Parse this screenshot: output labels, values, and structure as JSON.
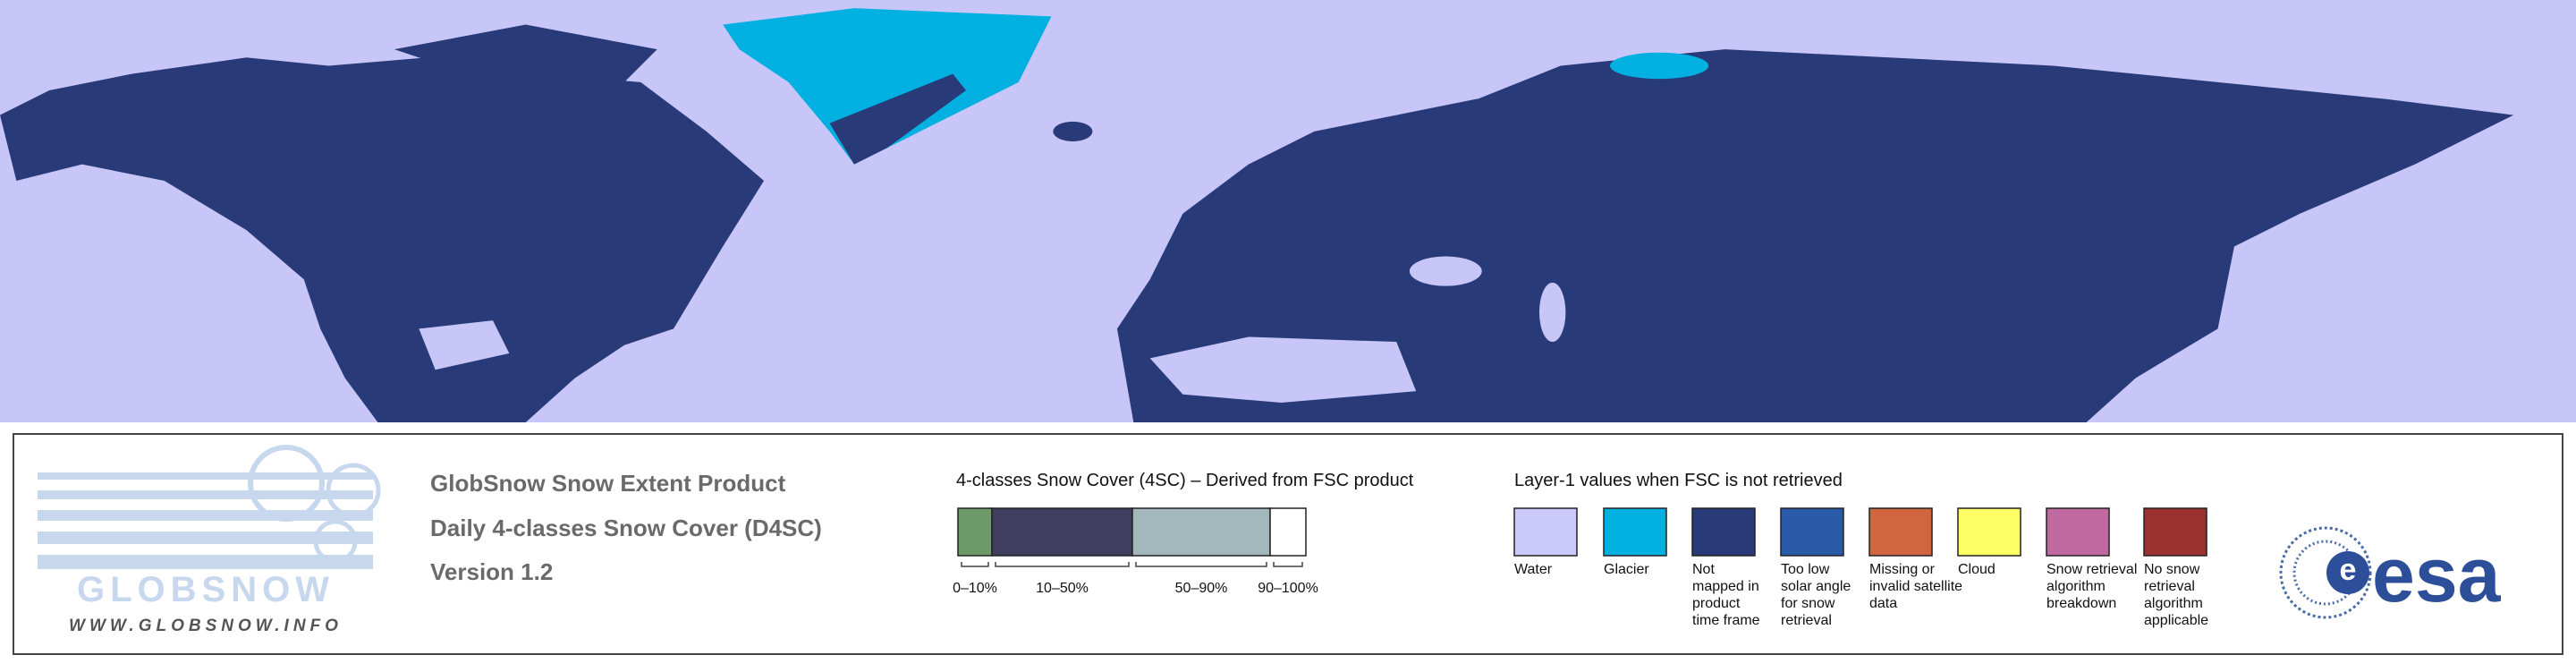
{
  "header": {
    "lines": [
      "GlobSnow Snow Extent Product",
      "Daily 4-classes Snow Cover (D4SC)",
      "Version 1.2"
    ]
  },
  "logo": {
    "name": "GLOBSNOW",
    "url": "WWW.GLOBSNOW.INFO",
    "agency": "esa"
  },
  "snow_classes": {
    "title": "4-classes Snow Cover (4SC) – Derived from FSC product",
    "items": [
      {
        "label": "0–10%",
        "color": "#6e9a6a"
      },
      {
        "label": "10–50%",
        "color": "#3f3e5e"
      },
      {
        "label": "50–90%",
        "color": "#a2b8bd"
      },
      {
        "label": "90–100%",
        "color": "#ffffff"
      }
    ]
  },
  "layer1": {
    "title": "Layer-1 values when FSC is not retrieved",
    "items": [
      {
        "lines": [
          "Water"
        ],
        "color": "#cbc9fb"
      },
      {
        "lines": [
          "Glacier"
        ],
        "color": "#00b0e0"
      },
      {
        "lines": [
          "Not",
          "mapped in",
          "product",
          "time frame"
        ],
        "color": "#283a78"
      },
      {
        "lines": [
          "Too low",
          "solar angle",
          "for snow",
          "retrieval"
        ],
        "color": "#2a5aa8"
      },
      {
        "lines": [
          "Missing or",
          "invalid satellite",
          "data"
        ],
        "color": "#d06540"
      },
      {
        "lines": [
          "Cloud"
        ],
        "color": "#ffff66"
      },
      {
        "lines": [
          "Snow retrieval",
          "algorithm",
          "breakdown"
        ],
        "color": "#c068a0"
      },
      {
        "lines": [
          "No snow",
          "retrieval",
          "algorithm",
          "applicable"
        ],
        "color": "#9a3030"
      }
    ]
  }
}
